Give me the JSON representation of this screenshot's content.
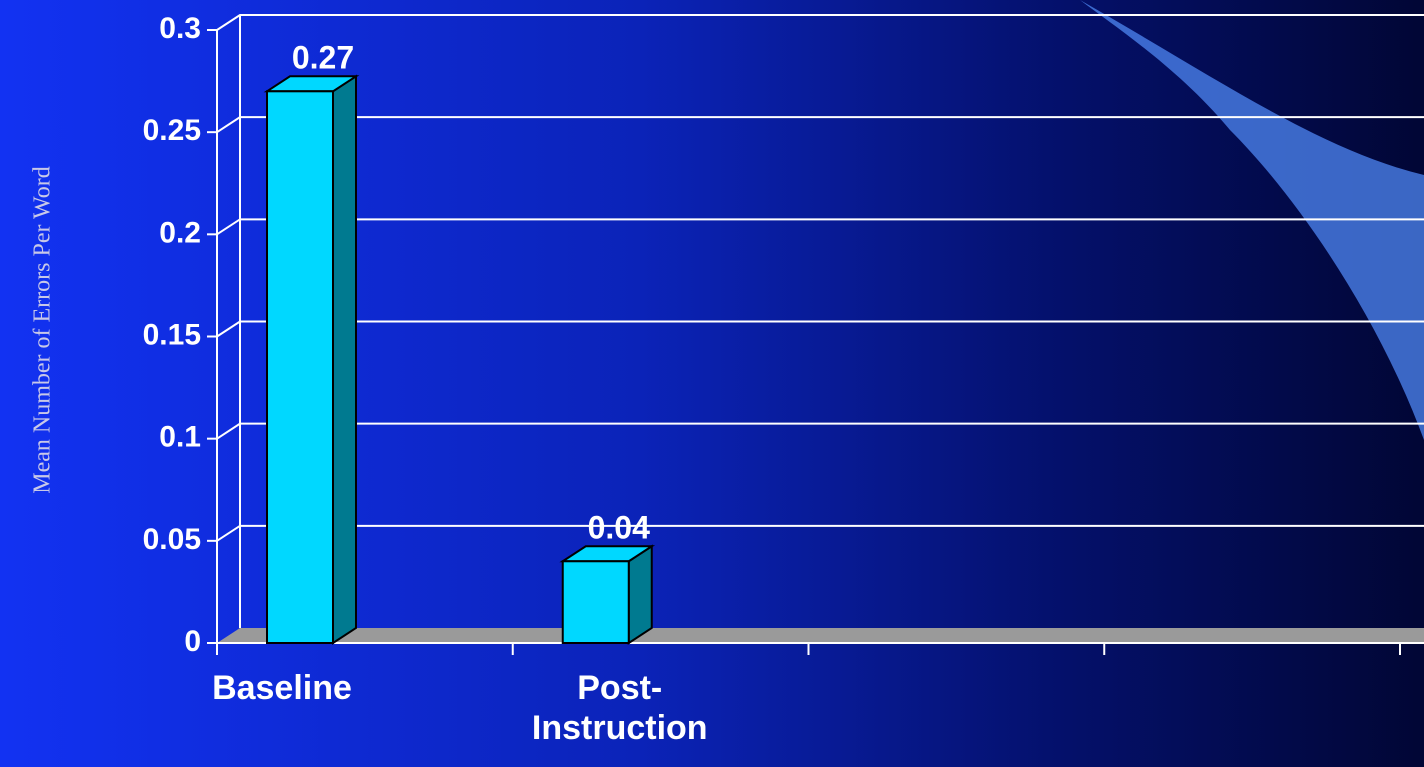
{
  "chart_data": {
    "type": "bar",
    "y_label": "Mean Number of  Errors Per Word",
    "categories": [
      "Baseline",
      "Post-Instruction",
      null,
      null
    ],
    "values": [
      0.27,
      0.04,
      null,
      null
    ],
    "color": "#00d8ff",
    "shade_color": "#007a90",
    "ylim": [
      0,
      0.3
    ],
    "yticks": [
      0,
      0.05,
      0.1,
      0.15,
      0.2,
      0.25,
      0.3
    ],
    "grid": true
  }
}
